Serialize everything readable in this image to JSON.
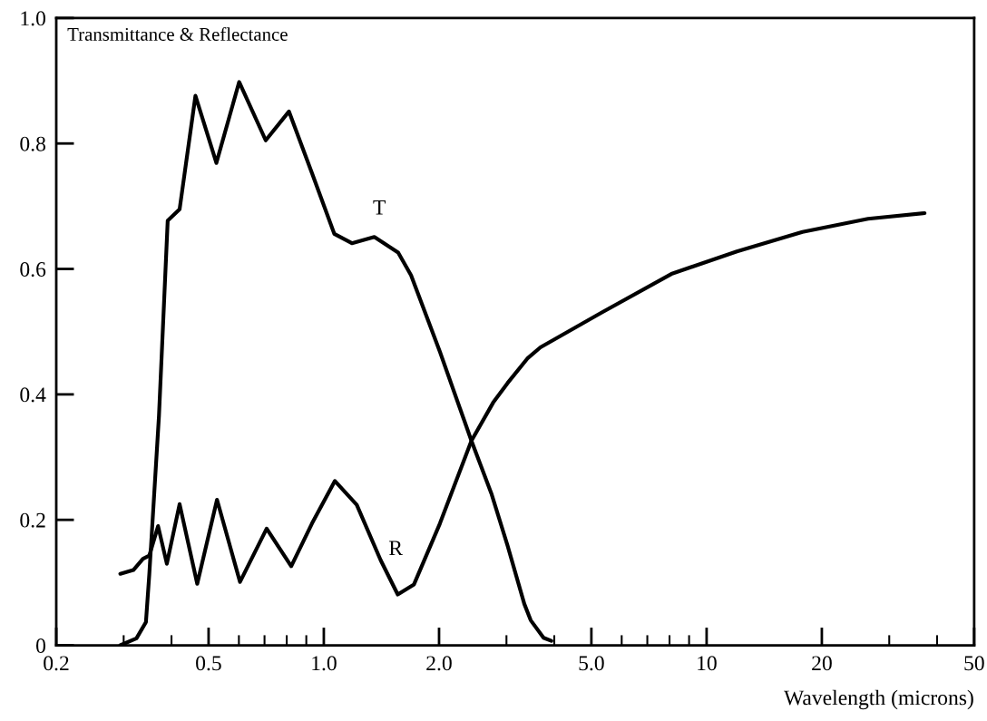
{
  "chart_data": {
    "type": "line",
    "title": "Transmittance & Reflectance",
    "xlabel": "Wavelength (microns)",
    "log": "x",
    "xlim": [
      0.2,
      50
    ],
    "ylim": [
      0,
      1.0
    ],
    "xticks": [
      0.2,
      {
        "value": 0.3,
        "label": null
      },
      {
        "value": 0.4,
        "label": null
      },
      0.5,
      {
        "value": 0.6,
        "label": null
      },
      {
        "value": 0.7,
        "label": null
      },
      {
        "value": 0.8,
        "label": null
      },
      {
        "value": 0.9,
        "label": null
      },
      {
        "value": 1,
        "label": "1.0"
      },
      {
        "value": 2,
        "label": "2.0"
      },
      {
        "value": 3,
        "label": null
      },
      {
        "value": 4,
        "label": null
      },
      {
        "value": 5,
        "label": "5.0"
      },
      {
        "value": 6,
        "label": null
      },
      {
        "value": 7,
        "label": null
      },
      {
        "value": 8,
        "label": null
      },
      {
        "value": 9,
        "label": null
      },
      10,
      20,
      {
        "value": 30,
        "label": null
      },
      {
        "value": 40,
        "label": null
      },
      50
    ],
    "yticks": [
      0,
      0.2,
      0.4,
      0.6,
      0.8,
      {
        "value": 1,
        "label": "1.0"
      }
    ],
    "grid": false,
    "marker": "none",
    "line_style": "solid",
    "series": [
      {
        "name": "T",
        "color": "#000000",
        "x": [
          0.294,
          0.324,
          0.343,
          0.35,
          0.371,
          0.391,
          0.42,
          0.462,
          0.524,
          0.601,
          0.705,
          0.811,
          0.931,
          1.065,
          1.184,
          1.355,
          1.564,
          1.69,
          2.01,
          2.43,
          2.74,
          3.02,
          3.34,
          3.47,
          3.75,
          3.93
        ],
        "values": [
          0.0,
          0.011,
          0.037,
          0.113,
          0.366,
          0.677,
          0.695,
          0.876,
          0.769,
          0.898,
          0.805,
          0.851,
          0.753,
          0.656,
          0.641,
          0.651,
          0.626,
          0.59,
          0.468,
          0.326,
          0.242,
          0.159,
          0.066,
          0.04,
          0.012,
          0.007
        ]
      },
      {
        "name": "R",
        "color": "#000000",
        "x": [
          0.294,
          0.318,
          0.337,
          0.35,
          0.369,
          0.389,
          0.42,
          0.467,
          0.526,
          0.604,
          0.709,
          0.822,
          0.931,
          1.069,
          1.219,
          1.407,
          1.56,
          1.72,
          2.01,
          2.43,
          2.77,
          3.02,
          3.4,
          3.68,
          5.3,
          8.09,
          12.0,
          17.8,
          26.4,
          37.1
        ],
        "values": [
          0.114,
          0.12,
          0.138,
          0.143,
          0.19,
          0.13,
          0.225,
          0.098,
          0.232,
          0.101,
          0.186,
          0.126,
          0.194,
          0.262,
          0.224,
          0.136,
          0.081,
          0.097,
          0.194,
          0.326,
          0.387,
          0.418,
          0.457,
          0.475,
          0.53,
          0.592,
          0.628,
          0.659,
          0.68,
          0.689
        ]
      }
    ]
  }
}
